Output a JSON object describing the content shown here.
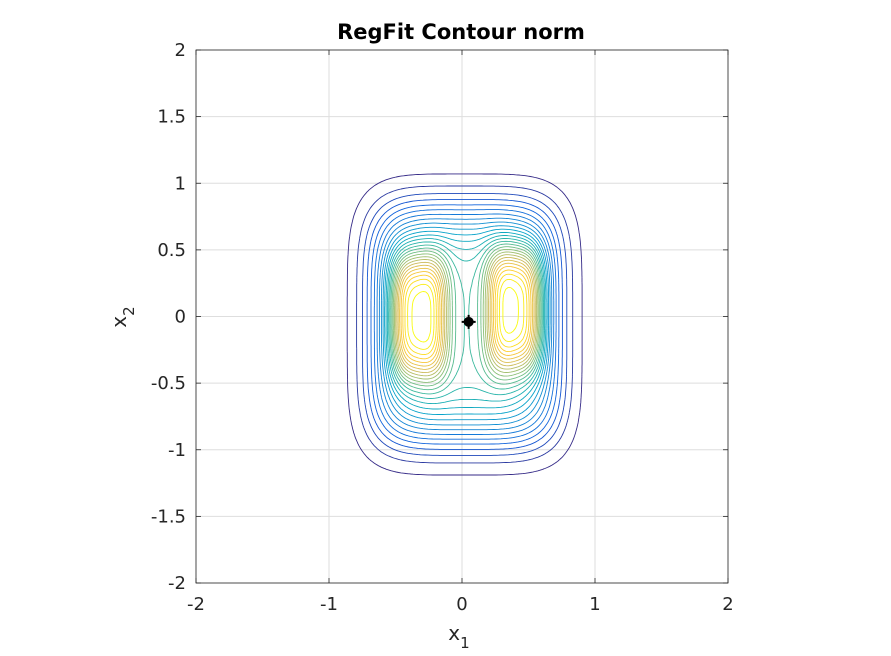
{
  "chart_data": {
    "type": "contour",
    "title": "RegFit Contour norm",
    "xlabel": {
      "base": "x",
      "sub": "1"
    },
    "ylabel": {
      "base": "x",
      "sub": "2"
    },
    "xlim": [
      -2,
      2
    ],
    "ylim": [
      -2,
      2
    ],
    "xticks": [
      -2,
      -1,
      0,
      1,
      2
    ],
    "yticks": [
      -2,
      -1.5,
      -1,
      -0.5,
      0,
      0.5,
      1,
      1.5,
      2
    ],
    "xtick_labels": [
      "-2",
      "-1",
      "0",
      "1",
      "2"
    ],
    "ytick_labels": [
      "-2",
      "-1.5",
      "-1",
      "-0.5",
      "0",
      "0.5",
      "1",
      "1.5",
      "2"
    ],
    "grid": true,
    "colormap": "parula",
    "colormap_stops": [
      "#352a87",
      "#0f5cdd",
      "#1481d6",
      "#06a4ca",
      "#2eb7a4",
      "#87bf77",
      "#d1bb59",
      "#fec832",
      "#f9fb0e"
    ],
    "levels": 28,
    "field": {
      "base": {
        "cx": 0.02,
        "cy": -0.06,
        "ax": 0.68,
        "ay": 0.87,
        "p": 4.5
      },
      "peaks": [
        {
          "cx": -0.33,
          "cy": 0.0,
          "sx": 0.21,
          "sy": 0.46,
          "p": 3.2,
          "w": 1.0
        },
        {
          "cx": 0.4,
          "cy": 0.05,
          "sx": 0.21,
          "sy": 0.46,
          "p": 3.2,
          "w": 1.0
        }
      ]
    },
    "marker": {
      "x": 0.05,
      "y": -0.04,
      "color": "#000000",
      "shape": "filled-circle"
    }
  }
}
